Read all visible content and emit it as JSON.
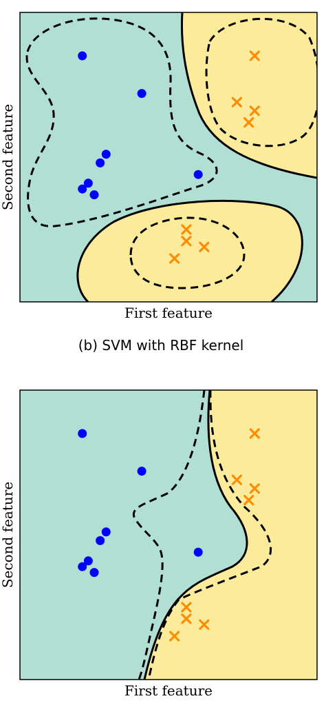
{
  "chart_data": [
    {
      "type": "scatter",
      "caption": "(b) SVM with RBF kernel",
      "xlabel": "First feature",
      "ylabel": "Second feature",
      "xlim": [
        0,
        1
      ],
      "ylim": [
        0,
        1
      ],
      "grid": false,
      "region_colors": {
        "class_0": "#b2dfd4",
        "class_1": "#fdeb9c"
      },
      "series": [
        {
          "class": "circle",
          "marker": "circle",
          "color": "#0000ff",
          "points": [
            [
              0.21,
              0.85
            ],
            [
              0.41,
              0.72
            ],
            [
              0.29,
              0.51
            ],
            [
              0.27,
              0.48
            ],
            [
              0.23,
              0.41
            ],
            [
              0.21,
              0.39
            ],
            [
              0.25,
              0.37
            ],
            [
              0.6,
              0.44
            ]
          ]
        },
        {
          "class": "cross",
          "marker": "x",
          "color": "#ff8c00",
          "points": [
            [
              0.79,
              0.85
            ],
            [
              0.73,
              0.69
            ],
            [
              0.79,
              0.66
            ],
            [
              0.77,
              0.62
            ],
            [
              0.56,
              0.25
            ],
            [
              0.56,
              0.21
            ],
            [
              0.62,
              0.19
            ],
            [
              0.52,
              0.15
            ]
          ]
        }
      ]
    },
    {
      "type": "scatter",
      "caption": "",
      "xlabel": "First feature",
      "ylabel": "Second feature",
      "xlim": [
        0,
        1
      ],
      "ylim": [
        0,
        1
      ],
      "grid": false,
      "region_colors": {
        "class_0": "#b2dfd4",
        "class_1": "#fdeb9c"
      },
      "series": [
        {
          "class": "circle",
          "marker": "circle",
          "color": "#0000ff",
          "points": [
            [
              0.21,
              0.85
            ],
            [
              0.41,
              0.72
            ],
            [
              0.29,
              0.51
            ],
            [
              0.27,
              0.48
            ],
            [
              0.23,
              0.41
            ],
            [
              0.21,
              0.39
            ],
            [
              0.25,
              0.37
            ],
            [
              0.6,
              0.44
            ]
          ]
        },
        {
          "class": "cross",
          "marker": "x",
          "color": "#ff8c00",
          "points": [
            [
              0.79,
              0.85
            ],
            [
              0.73,
              0.69
            ],
            [
              0.79,
              0.66
            ],
            [
              0.77,
              0.62
            ],
            [
              0.56,
              0.25
            ],
            [
              0.56,
              0.21
            ],
            [
              0.62,
              0.19
            ],
            [
              0.52,
              0.15
            ]
          ]
        }
      ]
    }
  ]
}
